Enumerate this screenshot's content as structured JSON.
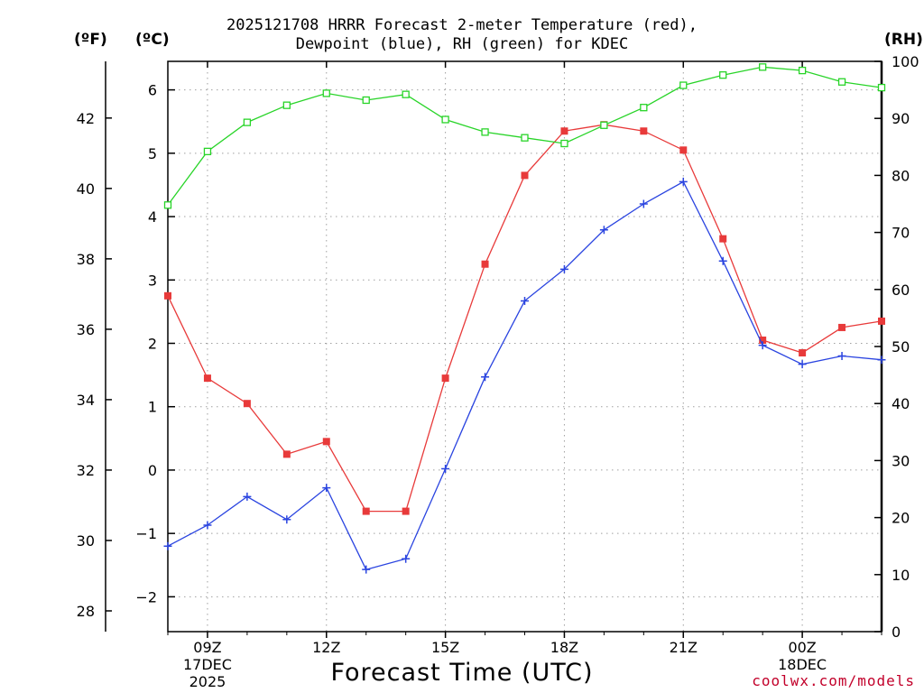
{
  "title_line1": "2025121708 HRRR Forecast 2-meter Temperature (red),",
  "title_line2": "Dewpoint (blue), RH (green) for KDEC",
  "units": {
    "f": "(ºF)",
    "c": "(ºC)",
    "rh": "(RH)"
  },
  "credit": "coolwx.com/models",
  "colors": {
    "temperature": "#e83a3a",
    "dewpoint": "#2a44e0",
    "rh": "#28d428",
    "grid": "#a0a0a0"
  },
  "chart_data": {
    "type": "line",
    "xlabel": "Forecast Time (UTC)",
    "x_hours": [
      8,
      9,
      10,
      11,
      12,
      13,
      14,
      15,
      16,
      17,
      18,
      19,
      20,
      21,
      22,
      23,
      24,
      25,
      26
    ],
    "xlim": [
      8,
      26
    ],
    "x_ticks": [
      {
        "hour": 9,
        "label": "09Z",
        "sub1": "17DEC",
        "sub2": "2025"
      },
      {
        "hour": 12,
        "label": "12Z"
      },
      {
        "hour": 15,
        "label": "15Z"
      },
      {
        "hour": 18,
        "label": "18Z"
      },
      {
        "hour": 21,
        "label": "21Z"
      },
      {
        "hour": 24,
        "label": "00Z",
        "sub1": "18DEC"
      }
    ],
    "left_axis_c": {
      "ylim": [
        -2.55,
        6.45
      ],
      "ticks": [
        6,
        5,
        4,
        3,
        2,
        1,
        0,
        -1,
        -2
      ],
      "labels": [
        "6",
        "5",
        "4",
        "3",
        "2",
        "1",
        "0",
        "−1",
        "−2"
      ]
    },
    "left_axis_f": {
      "ticks": [
        42,
        40,
        38,
        36,
        34,
        32,
        30,
        28
      ],
      "labels": [
        "42",
        "40",
        "38",
        "36",
        "34",
        "32",
        "30",
        "28"
      ]
    },
    "right_axis_rh": {
      "ylim": [
        0,
        100
      ],
      "ticks": [
        100,
        90,
        80,
        70,
        60,
        50,
        40,
        30,
        20,
        10,
        0
      ],
      "labels": [
        "100",
        "90",
        "80",
        "70",
        "60",
        "50",
        "40",
        "30",
        "20",
        "10",
        "0"
      ]
    },
    "series": [
      {
        "name": "Temperature",
        "axis": "c",
        "marker": "filled-square",
        "values": [
          2.75,
          1.45,
          1.05,
          0.25,
          0.45,
          -0.65,
          -0.65,
          1.45,
          3.25,
          4.65,
          5.35,
          5.45,
          5.35,
          5.05,
          3.65,
          2.05,
          1.85,
          2.25,
          2.35
        ]
      },
      {
        "name": "Dewpoint",
        "axis": "c",
        "marker": "plus",
        "values": [
          -1.2,
          -0.87,
          -0.42,
          -0.78,
          -0.28,
          -1.57,
          -1.4,
          0.02,
          1.47,
          2.67,
          3.17,
          3.79,
          4.2,
          4.55,
          3.3,
          1.97,
          1.67,
          1.8,
          1.74
        ]
      },
      {
        "name": "RH",
        "axis": "rh",
        "marker": "open-square",
        "values": [
          74.8,
          84.2,
          89.3,
          92.3,
          94.4,
          93.2,
          94.2,
          89.8,
          87.6,
          86.6,
          85.6,
          88.8,
          91.9,
          95.8,
          97.6,
          99.0,
          98.4,
          96.4,
          95.4
        ]
      }
    ]
  }
}
